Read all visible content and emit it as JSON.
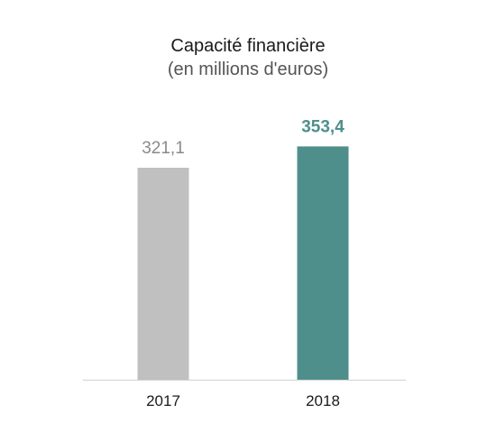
{
  "chart_data": {
    "type": "bar",
    "title": "Capacité financière",
    "subtitle": "(en millions d'euros)",
    "categories": [
      "2017",
      "2018"
    ],
    "values": [
      321.1,
      353.4
    ],
    "value_labels": [
      "321,1",
      "353,4"
    ],
    "colors": [
      "#c0c0c0",
      "#4e8f8c"
    ],
    "label_colors": [
      "#8a8a8a",
      "#4e8f8c"
    ],
    "label_bold": [
      false,
      true
    ],
    "xlabel": "",
    "ylabel": "",
    "ylim": [
      0,
      400
    ],
    "grid": false
  }
}
